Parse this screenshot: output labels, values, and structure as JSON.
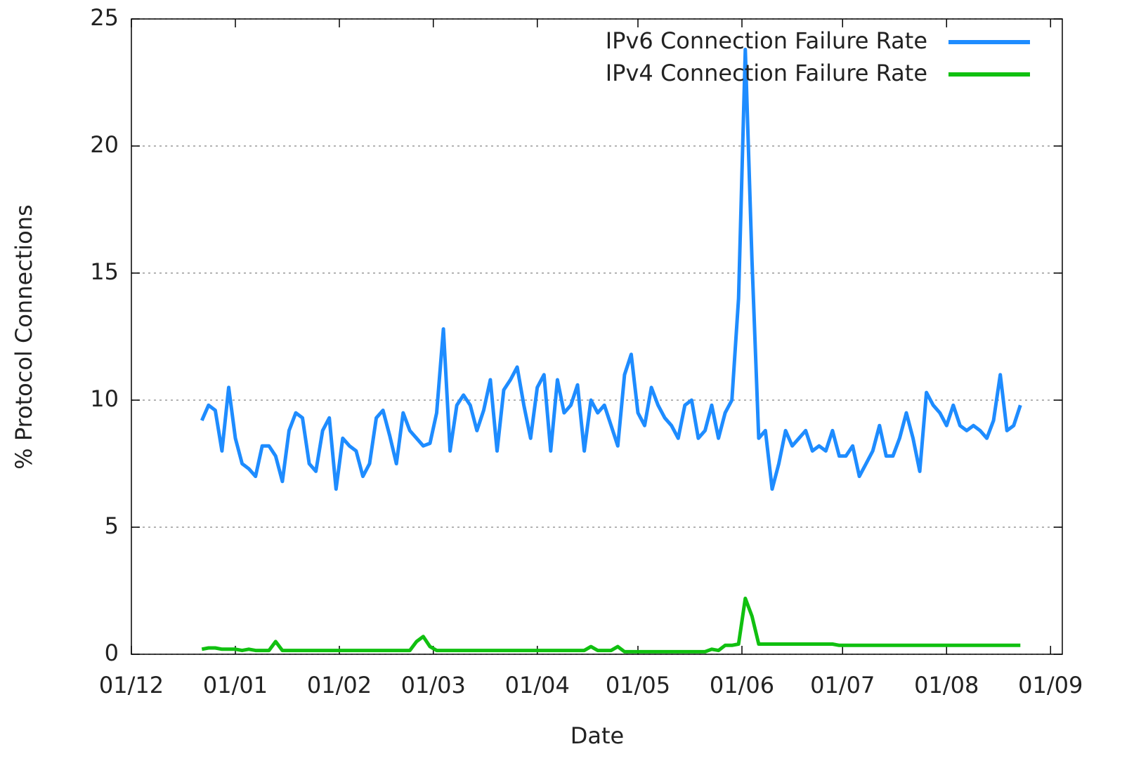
{
  "chart_data": {
    "type": "line",
    "x_label": "Date",
    "y_label": "% Protocol Connections",
    "xlim": [
      0,
      277.5
    ],
    "ylim": [
      0,
      25
    ],
    "yticks": [
      0,
      5,
      10,
      15,
      20,
      25
    ],
    "xticks": [
      {
        "value": 0,
        "label": "01/12"
      },
      {
        "value": 31,
        "label": "01/01"
      },
      {
        "value": 62,
        "label": "01/02"
      },
      {
        "value": 90,
        "label": "01/03"
      },
      {
        "value": 121,
        "label": "01/04"
      },
      {
        "value": 151,
        "label": "01/05"
      },
      {
        "value": 182,
        "label": "01/06"
      },
      {
        "value": 212,
        "label": "01/07"
      },
      {
        "value": 243,
        "label": "01/08"
      },
      {
        "value": 274,
        "label": "01/09"
      }
    ],
    "grid": true,
    "legend": "top-right",
    "x": [
      21,
      23,
      25,
      27,
      29,
      31,
      33,
      35,
      37,
      39,
      41,
      43,
      45,
      47,
      49,
      51,
      53,
      55,
      57,
      59,
      61,
      63,
      65,
      67,
      69,
      71,
      73,
      75,
      77,
      79,
      81,
      83,
      85,
      87,
      89,
      91,
      93,
      95,
      97,
      99,
      101,
      103,
      105,
      107,
      109,
      111,
      113,
      115,
      117,
      119,
      121,
      123,
      125,
      127,
      129,
      131,
      133,
      135,
      137,
      139,
      141,
      143,
      145,
      147,
      149,
      151,
      153,
      155,
      157,
      159,
      161,
      163,
      165,
      167,
      169,
      171,
      173,
      175,
      177,
      179,
      181,
      183,
      185,
      187,
      189,
      191,
      193,
      195,
      197,
      199,
      201,
      203,
      205,
      207,
      209,
      211,
      213,
      215,
      217,
      219,
      221,
      223,
      225,
      227,
      229,
      231,
      233,
      235,
      237,
      239,
      241,
      243,
      245,
      247,
      249,
      251,
      253,
      255,
      257,
      259,
      261,
      263,
      265
    ],
    "series": [
      {
        "name": "IPv6 Connection Failure Rate",
        "color": "#1e8cff",
        "values": [
          9.2,
          9.8,
          9.6,
          8.0,
          10.5,
          8.5,
          7.5,
          7.3,
          7.0,
          8.2,
          8.2,
          7.8,
          6.8,
          8.8,
          9.5,
          9.3,
          7.5,
          7.2,
          8.8,
          9.3,
          6.5,
          8.5,
          8.2,
          8.0,
          7.0,
          7.5,
          9.3,
          9.6,
          8.6,
          7.5,
          9.5,
          8.8,
          8.5,
          8.2,
          8.3,
          9.5,
          12.8,
          8.0,
          9.8,
          10.2,
          9.8,
          8.8,
          9.6,
          10.8,
          8.0,
          10.4,
          10.8,
          11.3,
          9.8,
          8.5,
          10.5,
          11.0,
          8.0,
          10.8,
          9.5,
          9.8,
          10.6,
          8.0,
          10.0,
          9.5,
          9.8,
          9.0,
          8.2,
          11.0,
          11.8,
          9.5,
          9.0,
          10.5,
          9.8,
          9.3,
          9.0,
          8.5,
          9.8,
          10.0,
          8.5,
          8.8,
          9.8,
          8.5,
          9.5,
          10.0,
          14.0,
          23.8,
          15.5,
          8.5,
          8.8,
          6.5,
          7.5,
          8.8,
          8.2,
          8.5,
          8.8,
          8.0,
          8.2,
          8.0,
          8.8,
          7.8,
          7.8,
          8.2,
          7.0,
          7.5,
          8.0,
          9.0,
          7.8,
          7.8,
          8.5,
          9.5,
          8.5,
          7.2,
          10.3,
          9.8,
          9.5,
          9.0,
          9.8,
          9.0,
          8.8,
          9.0,
          8.8,
          8.5,
          9.2,
          11.0,
          8.8,
          9.0,
          9.8
        ]
      },
      {
        "name": "IPv4 Connection Failure Rate",
        "color": "#10c010",
        "values": [
          0.2,
          0.25,
          0.25,
          0.2,
          0.2,
          0.2,
          0.15,
          0.2,
          0.15,
          0.15,
          0.15,
          0.5,
          0.15,
          0.15,
          0.15,
          0.15,
          0.15,
          0.15,
          0.15,
          0.15,
          0.15,
          0.15,
          0.15,
          0.15,
          0.15,
          0.15,
          0.15,
          0.15,
          0.15,
          0.15,
          0.15,
          0.15,
          0.5,
          0.7,
          0.3,
          0.15,
          0.15,
          0.15,
          0.15,
          0.15,
          0.15,
          0.15,
          0.15,
          0.15,
          0.15,
          0.15,
          0.15,
          0.15,
          0.15,
          0.15,
          0.15,
          0.15,
          0.15,
          0.15,
          0.15,
          0.15,
          0.15,
          0.15,
          0.3,
          0.15,
          0.15,
          0.15,
          0.3,
          0.1,
          0.1,
          0.1,
          0.1,
          0.1,
          0.1,
          0.1,
          0.1,
          0.1,
          0.1,
          0.1,
          0.1,
          0.1,
          0.2,
          0.15,
          0.35,
          0.35,
          0.4,
          2.2,
          1.5,
          0.4,
          0.4,
          0.4,
          0.4,
          0.4,
          0.4,
          0.4,
          0.4,
          0.4,
          0.4,
          0.4,
          0.4,
          0.35,
          0.35,
          0.35,
          0.35,
          0.35,
          0.35,
          0.35,
          0.35,
          0.35,
          0.35,
          0.35,
          0.35,
          0.35,
          0.35,
          0.35,
          0.35,
          0.35,
          0.35,
          0.35,
          0.35,
          0.35,
          0.35,
          0.35,
          0.35,
          0.35,
          0.35,
          0.35,
          0.35
        ]
      }
    ]
  }
}
